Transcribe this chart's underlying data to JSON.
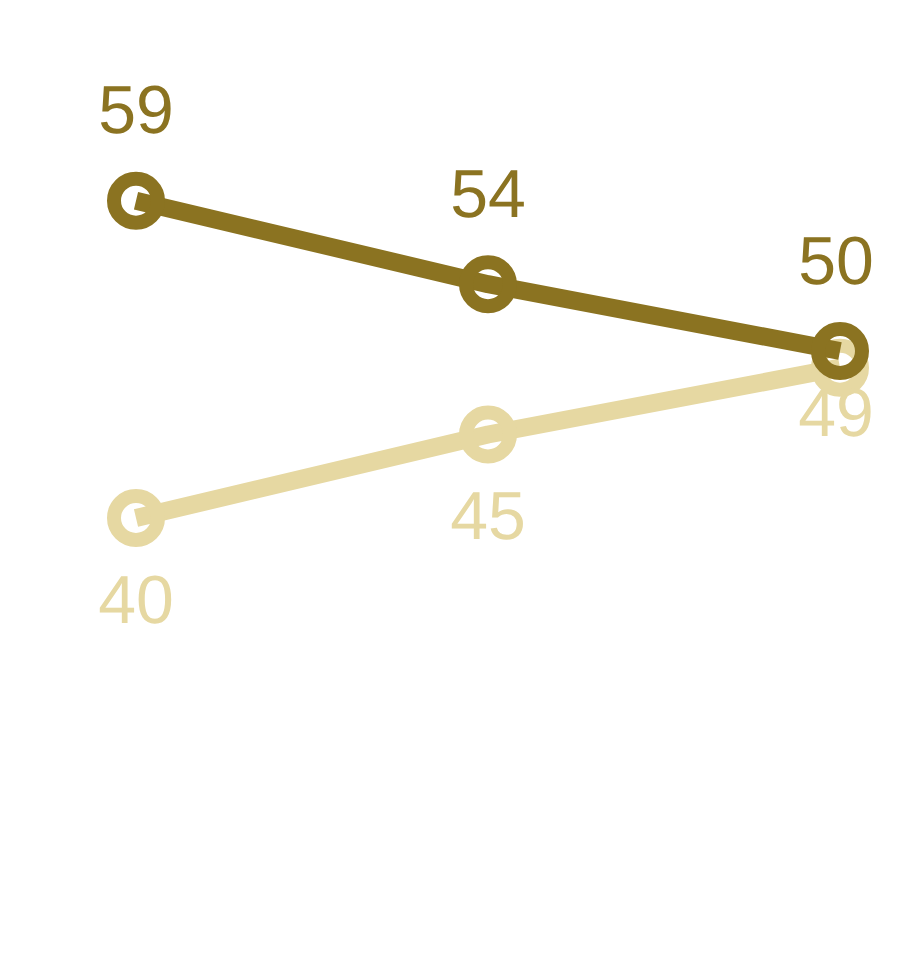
{
  "chart_data": {
    "type": "line",
    "categories": [
      null,
      null,
      null
    ],
    "series": [
      {
        "color": "#8b7321",
        "values": [
          59,
          54,
          50
        ]
      },
      {
        "color": "#e6d8a2",
        "values": [
          40,
          45,
          49
        ]
      }
    ],
    "data_labels": true,
    "marker": "circle",
    "line_style": "solid",
    "legend": false,
    "tick_labels": false
  }
}
